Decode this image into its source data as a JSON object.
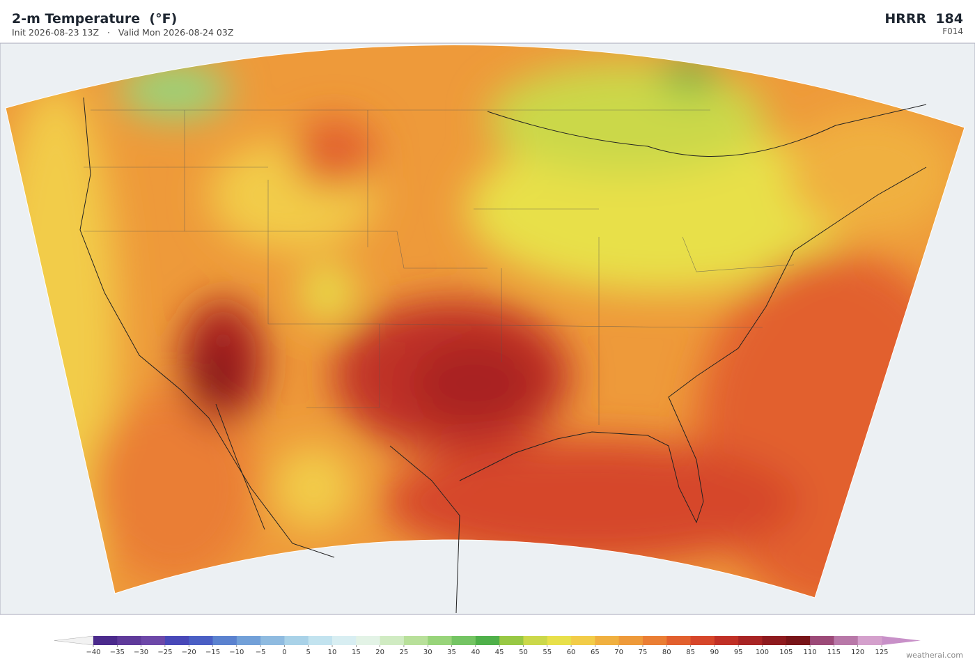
{
  "header": {
    "title": "2-m Temperature  (°F)",
    "init": "Init 2026-08-23 13Z",
    "separator": "·",
    "valid": "Valid Mon 2026-08-24 03Z",
    "model": "HRRR  184",
    "forecast_hour": "F014"
  },
  "colorbar": {
    "ticks": [
      {
        "value": -40,
        "label": "−40"
      },
      {
        "value": -35,
        "label": "−35"
      },
      {
        "value": -30,
        "label": "−30"
      },
      {
        "value": -25,
        "label": "−25"
      },
      {
        "value": -20,
        "label": "−20"
      },
      {
        "value": -15,
        "label": "−15"
      },
      {
        "value": -10,
        "label": "−10"
      },
      {
        "value": -5,
        "label": "−5"
      },
      0,
      5,
      10,
      15,
      20,
      25,
      30,
      35,
      40,
      45,
      50,
      55,
      60,
      65,
      70,
      75,
      80,
      85,
      90,
      95,
      100,
      105,
      110,
      115,
      120,
      125
    ],
    "colors": [
      "#4b2a8c",
      "#5f3a9a",
      "#6d48a8",
      "#4848b8",
      "#4a5fc4",
      "#5b82cf",
      "#72a0d8",
      "#8fbbe0",
      "#a9d2e8",
      "#c2e3ef",
      "#d8eef2",
      "#e3f3e6",
      "#d0ebc2",
      "#b8e09a",
      "#98d47a",
      "#74c463",
      "#4fb04a",
      "#98c844",
      "#cbd84a",
      "#e8e04a",
      "#f2cc48",
      "#f0b040",
      "#ee9a3a",
      "#ea7e34",
      "#e2602e",
      "#d6462a",
      "#c03026",
      "#a82424",
      "#8e1a1e",
      "#781418",
      "#9c4a78",
      "#b878a8",
      "#d4a0cc"
    ],
    "under_color": "#f2f2f2",
    "over_color": "#c890c8"
  },
  "footer": {
    "credit": "weatherai.com"
  }
}
